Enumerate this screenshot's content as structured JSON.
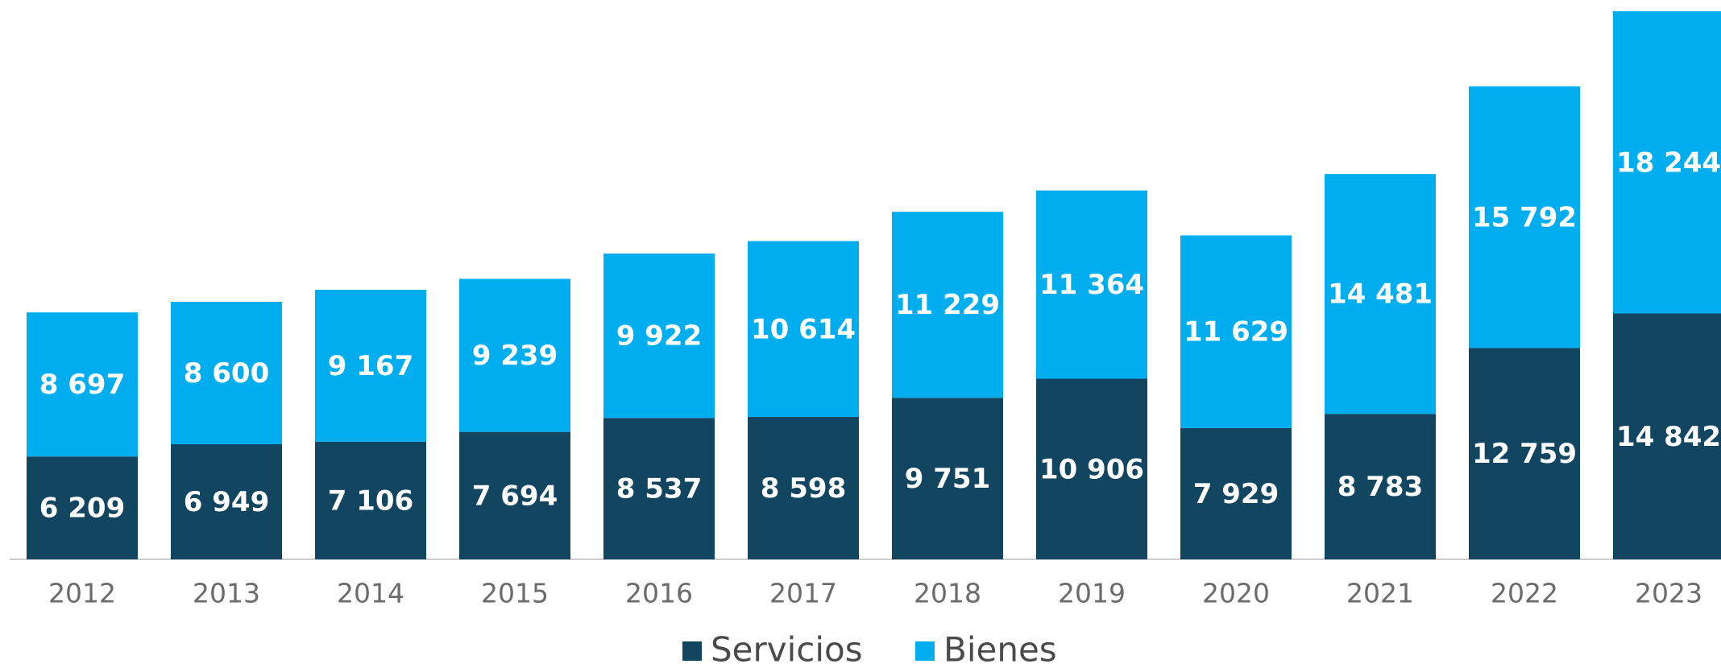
{
  "chart_data": {
    "type": "stacked_bar",
    "categories": [
      "2012",
      "2013",
      "2014",
      "2015",
      "2016",
      "2017",
      "2018",
      "2019",
      "2020",
      "2021",
      "2022",
      "2023"
    ],
    "series": [
      {
        "name": "Servicios",
        "color": "#12455f",
        "values": [
          6209,
          6949,
          7106,
          7694,
          8537,
          8598,
          9751,
          10906,
          7929,
          8783,
          12759,
          14842
        ],
        "value_labels": [
          "6 209",
          "6 949",
          "7 106",
          "7 694",
          "8 537",
          "8 598",
          "9 751",
          "10 906",
          "7 929",
          "8 783",
          "12 759",
          "14 842"
        ]
      },
      {
        "name": "Bienes",
        "color": "#00aeef",
        "values": [
          8697,
          8600,
          9167,
          9239,
          9922,
          10614,
          11229,
          11364,
          11629,
          14481,
          15792,
          18244
        ],
        "value_labels": [
          "8 697",
          "8 600",
          "9 167",
          "9 239",
          "9 922",
          "10 614",
          "11 229",
          "11 364",
          "11 629",
          "14 481",
          "15 792",
          "18 244"
        ]
      }
    ]
  }
}
